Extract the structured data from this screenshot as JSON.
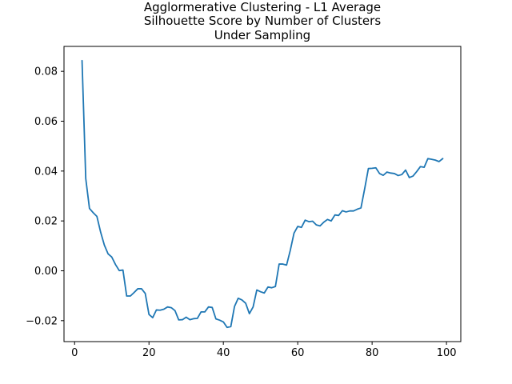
{
  "chart_data": {
    "type": "line",
    "title": [
      "Agglormerative Clustering - L1 Average",
      "Silhouette Score by Number of Clusters",
      "Under Sampling"
    ],
    "xlabel": "",
    "ylabel": "",
    "xlim": [
      -2.85,
      103.85
    ],
    "ylim": [
      -0.0284,
      0.09
    ],
    "xticks": [
      0,
      20,
      40,
      60,
      80,
      100
    ],
    "xtick_labels": [
      "0",
      "20",
      "40",
      "60",
      "80",
      "100"
    ],
    "yticks": [
      -0.02,
      0.0,
      0.02,
      0.04,
      0.06,
      0.08
    ],
    "ytick_labels": [
      "−0.02",
      "0.00",
      "0.02",
      "0.04",
      "0.06",
      "0.08"
    ],
    "grid": false,
    "legend": "none",
    "colors": {
      "series": "#1f77b4"
    },
    "series": [
      {
        "x": [
          2,
          3,
          4,
          5,
          6,
          7,
          8,
          9,
          10,
          11,
          12,
          13,
          14,
          15,
          16,
          17,
          18,
          19,
          20,
          21,
          22,
          23,
          24,
          25,
          26,
          27,
          28,
          29,
          30,
          31,
          32,
          33,
          34,
          35,
          36,
          37,
          38,
          39,
          40,
          41,
          42,
          43,
          44,
          45,
          46,
          47,
          48,
          49,
          50,
          51,
          52,
          53,
          54,
          55,
          56,
          57,
          58,
          59,
          60,
          61,
          62,
          63,
          64,
          65,
          66,
          67,
          68,
          69,
          70,
          71,
          72,
          73,
          74,
          75,
          76,
          77,
          78,
          79,
          80,
          81,
          82,
          83,
          84,
          85,
          86,
          87,
          88,
          89,
          90,
          91,
          92,
          93,
          94,
          95,
          96,
          97,
          98,
          99
        ],
        "values": [
          0.0843,
          0.037,
          0.025,
          0.0233,
          0.0218,
          0.0155,
          0.0103,
          0.0068,
          0.0055,
          0.0025,
          0.0001,
          0.0003,
          -0.0101,
          -0.0101,
          -0.0087,
          -0.0072,
          -0.0072,
          -0.0091,
          -0.0175,
          -0.0188,
          -0.0157,
          -0.0158,
          -0.0154,
          -0.0145,
          -0.0148,
          -0.016,
          -0.0197,
          -0.0196,
          -0.0186,
          -0.0196,
          -0.0192,
          -0.0191,
          -0.0165,
          -0.0165,
          -0.0145,
          -0.0147,
          -0.0193,
          -0.0198,
          -0.0205,
          -0.0227,
          -0.0224,
          -0.0143,
          -0.011,
          -0.0117,
          -0.013,
          -0.0172,
          -0.0145,
          -0.0077,
          -0.0084,
          -0.0089,
          -0.0065,
          -0.0068,
          -0.0063,
          0.0027,
          0.0027,
          0.0023,
          0.0082,
          0.0151,
          0.0178,
          0.0174,
          0.0203,
          0.0197,
          0.0199,
          0.0184,
          0.018,
          0.0195,
          0.0206,
          0.02,
          0.0224,
          0.0222,
          0.0241,
          0.0236,
          0.024,
          0.024,
          0.0247,
          0.0252,
          0.0329,
          0.041,
          0.0411,
          0.0413,
          0.039,
          0.0383,
          0.0396,
          0.0392,
          0.039,
          0.0382,
          0.0386,
          0.0404,
          0.0374,
          0.038,
          0.0398,
          0.0418,
          0.0415,
          0.045,
          0.0447,
          0.0444,
          0.0438,
          0.045
        ]
      }
    ]
  }
}
